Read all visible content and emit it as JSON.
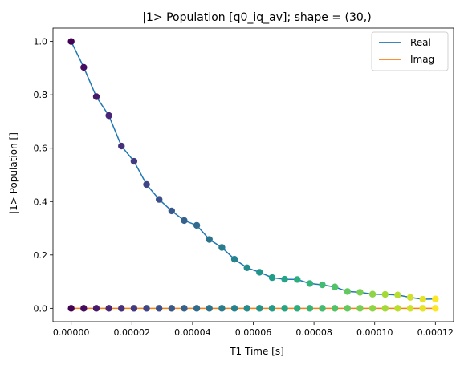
{
  "chart_data": {
    "type": "line",
    "title": "|1> Population [q0_iq_av]; shape = (30,)",
    "xlabel": "T1 Time [s]",
    "ylabel": "|1> Population []",
    "xlim": [
      -6e-06,
      0.000126
    ],
    "ylim": [
      -0.05,
      1.05
    ],
    "xticks": [
      0,
      2e-05,
      4e-05,
      6e-05,
      8e-05,
      0.0001,
      0.00012
    ],
    "xtick_labels": [
      "0.00000",
      "0.00002",
      "0.00004",
      "0.00006",
      "0.00008",
      "0.00010",
      "0.00012"
    ],
    "yticks": [
      0,
      0.2,
      0.4,
      0.6,
      0.8,
      1.0
    ],
    "ytick_labels": [
      "0.0",
      "0.2",
      "0.4",
      "0.6",
      "0.8",
      "1.0"
    ],
    "grid": false,
    "legend_position": "top-right",
    "x": [
      0,
      4.1379e-06,
      8.2759e-06,
      1.24138e-05,
      1.65517e-05,
      2.06897e-05,
      2.48276e-05,
      2.89655e-05,
      3.31034e-05,
      3.72414e-05,
      4.13793e-05,
      4.55172e-05,
      4.96552e-05,
      5.37931e-05,
      5.7931e-05,
      6.2069e-05,
      6.62069e-05,
      7.03448e-05,
      7.44828e-05,
      7.86207e-05,
      8.27586e-05,
      8.68966e-05,
      9.10345e-05,
      9.51724e-05,
      9.93103e-05,
      0.0001034483,
      0.0001075862,
      0.0001117241,
      0.0001158621,
      0.00012
    ],
    "series": [
      {
        "name": "Real",
        "color": "#1f77b4",
        "values": [
          1.0,
          0.903,
          0.793,
          0.722,
          0.608,
          0.551,
          0.464,
          0.408,
          0.365,
          0.329,
          0.311,
          0.258,
          0.228,
          0.184,
          0.152,
          0.135,
          0.115,
          0.109,
          0.108,
          0.093,
          0.088,
          0.08,
          0.063,
          0.06,
          0.053,
          0.052,
          0.05,
          0.041,
          0.034,
          0.035
        ]
      },
      {
        "name": "Imag",
        "color": "#ff7f0e",
        "values": [
          0,
          0,
          0,
          0,
          0,
          0,
          0,
          0,
          0,
          0,
          0,
          0,
          0,
          0,
          0,
          0,
          0,
          0,
          0,
          0,
          0,
          0,
          0,
          0,
          0,
          0,
          0,
          0,
          0,
          0
        ]
      }
    ],
    "marker_colormap": "viridis"
  }
}
